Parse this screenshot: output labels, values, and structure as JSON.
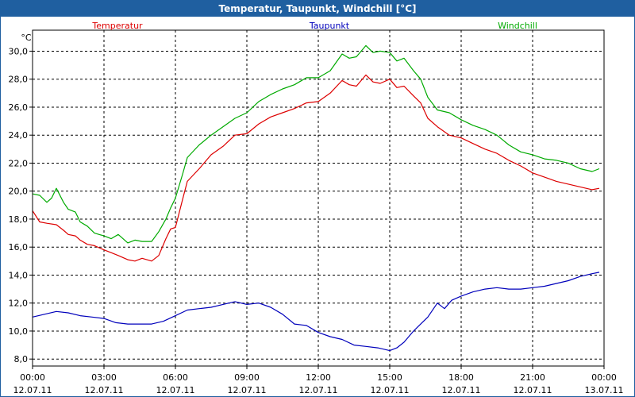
{
  "window": {
    "title": "Temperatur, Taupunkt, Windchill [°C]"
  },
  "chart_data": {
    "type": "line",
    "title": "Temperatur, Taupunkt, Windchill [°C]",
    "ylabel": "°C",
    "ylim": [
      7.5,
      31.5
    ],
    "yticks": [
      "8,0",
      "10,0",
      "12,0",
      "14,0",
      "16,0",
      "18,0",
      "20,0",
      "22,0",
      "24,0",
      "26,0",
      "28,0",
      "30,0"
    ],
    "xlim": [
      0,
      24
    ],
    "xticks": [
      {
        "time": "00:00",
        "date": "12.07.11"
      },
      {
        "time": "03:00",
        "date": "12.07.11"
      },
      {
        "time": "06:00",
        "date": "12.07.11"
      },
      {
        "time": "09:00",
        "date": "12.07.11"
      },
      {
        "time": "12:00",
        "date": "12.07.11"
      },
      {
        "time": "15:00",
        "date": "12.07.11"
      },
      {
        "time": "18:00",
        "date": "12.07.11"
      },
      {
        "time": "21:00",
        "date": "12.07.11"
      },
      {
        "time": "00:00",
        "date": "13.07.11"
      }
    ],
    "grid": true,
    "x_unit": "hours since 12.07.11 00:00",
    "series": [
      {
        "name": "Temperatur",
        "color": "#dd0000",
        "x": [
          0,
          0.3,
          0.6,
          1,
          1.3,
          1.5,
          1.8,
          2,
          2.3,
          2.6,
          3,
          3.3,
          3.6,
          4,
          4.3,
          4.6,
          5,
          5.3,
          5.6,
          5.8,
          6,
          6.3,
          6.5,
          7,
          7.5,
          8,
          8.5,
          9,
          9.5,
          10,
          10.5,
          11,
          11.5,
          12,
          12.5,
          13,
          13.3,
          13.6,
          14,
          14.3,
          14.6,
          15,
          15.3,
          15.6,
          16,
          16.3,
          16.6,
          17,
          17.5,
          18,
          18.5,
          19,
          19.5,
          20,
          20.5,
          21,
          21.5,
          22,
          22.5,
          23,
          23.5,
          23.8
        ],
        "y": [
          18.6,
          17.8,
          17.7,
          17.6,
          17.2,
          16.9,
          16.8,
          16.5,
          16.2,
          16.1,
          15.8,
          15.6,
          15.4,
          15.1,
          15.0,
          15.2,
          15.0,
          15.4,
          16.6,
          17.3,
          17.4,
          19.4,
          20.7,
          21.6,
          22.6,
          23.2,
          24.0,
          24.1,
          24.8,
          25.3,
          25.6,
          25.9,
          26.3,
          26.4,
          27.0,
          27.9,
          27.6,
          27.5,
          28.3,
          27.8,
          27.7,
          28.0,
          27.4,
          27.5,
          26.8,
          26.3,
          25.2,
          24.6,
          24.0,
          23.8,
          23.4,
          23.0,
          22.7,
          22.2,
          21.8,
          21.3,
          21.0,
          20.7,
          20.5,
          20.3,
          20.1,
          20.2
        ]
      },
      {
        "name": "Taupunkt",
        "color": "#0000bb",
        "x": [
          0,
          0.5,
          1,
          1.5,
          2,
          2.5,
          3,
          3.5,
          4,
          4.5,
          5,
          5.5,
          6,
          6.5,
          7,
          7.5,
          8,
          8.5,
          9,
          9.5,
          10,
          10.5,
          11,
          11.5,
          12,
          12.5,
          13,
          13.5,
          14,
          14.5,
          15,
          15.3,
          15.6,
          16,
          16.3,
          16.6,
          17,
          17.3,
          17.6,
          18,
          18.5,
          19,
          19.5,
          20,
          20.5,
          21,
          21.5,
          22,
          22.5,
          23,
          23.5,
          23.8
        ],
        "y": [
          11.0,
          11.2,
          11.4,
          11.3,
          11.1,
          11.0,
          10.9,
          10.6,
          10.5,
          10.5,
          10.5,
          10.7,
          11.1,
          11.5,
          11.6,
          11.7,
          11.9,
          12.1,
          11.9,
          12.0,
          11.7,
          11.2,
          10.5,
          10.4,
          9.9,
          9.6,
          9.4,
          9.0,
          8.9,
          8.8,
          8.6,
          8.8,
          9.2,
          10.0,
          10.5,
          11.0,
          12.0,
          11.6,
          12.2,
          12.5,
          12.8,
          13.0,
          13.1,
          13.0,
          13.0,
          13.1,
          13.2,
          13.4,
          13.6,
          13.9,
          14.1,
          14.2
        ]
      },
      {
        "name": "Windchill",
        "color": "#00aa00",
        "x": [
          0,
          0.3,
          0.6,
          0.8,
          1,
          1.3,
          1.5,
          1.8,
          2,
          2.3,
          2.6,
          3,
          3.3,
          3.6,
          4,
          4.3,
          4.6,
          5,
          5.3,
          5.6,
          5.8,
          6,
          6.3,
          6.5,
          7,
          7.5,
          8,
          8.5,
          9,
          9.5,
          10,
          10.5,
          11,
          11.5,
          12,
          12.5,
          13,
          13.3,
          13.6,
          14,
          14.3,
          14.6,
          15,
          15.3,
          15.6,
          16,
          16.3,
          16.6,
          17,
          17.5,
          18,
          18.5,
          19,
          19.5,
          20,
          20.5,
          21,
          21.5,
          22,
          22.5,
          23,
          23.5,
          23.8
        ],
        "y": [
          19.8,
          19.7,
          19.2,
          19.5,
          20.2,
          19.2,
          18.7,
          18.5,
          17.8,
          17.5,
          17.0,
          16.8,
          16.6,
          16.9,
          16.3,
          16.5,
          16.4,
          16.4,
          17.1,
          18.0,
          18.8,
          19.5,
          21.2,
          22.4,
          23.3,
          24.0,
          24.6,
          25.2,
          25.6,
          26.4,
          26.9,
          27.3,
          27.6,
          28.1,
          28.1,
          28.6,
          29.8,
          29.5,
          29.6,
          30.4,
          29.9,
          30.0,
          29.9,
          29.3,
          29.5,
          28.6,
          28.0,
          26.7,
          25.8,
          25.6,
          25.1,
          24.7,
          24.4,
          24.0,
          23.3,
          22.8,
          22.6,
          22.3,
          22.2,
          22.0,
          21.6,
          21.4,
          21.6
        ]
      }
    ]
  }
}
